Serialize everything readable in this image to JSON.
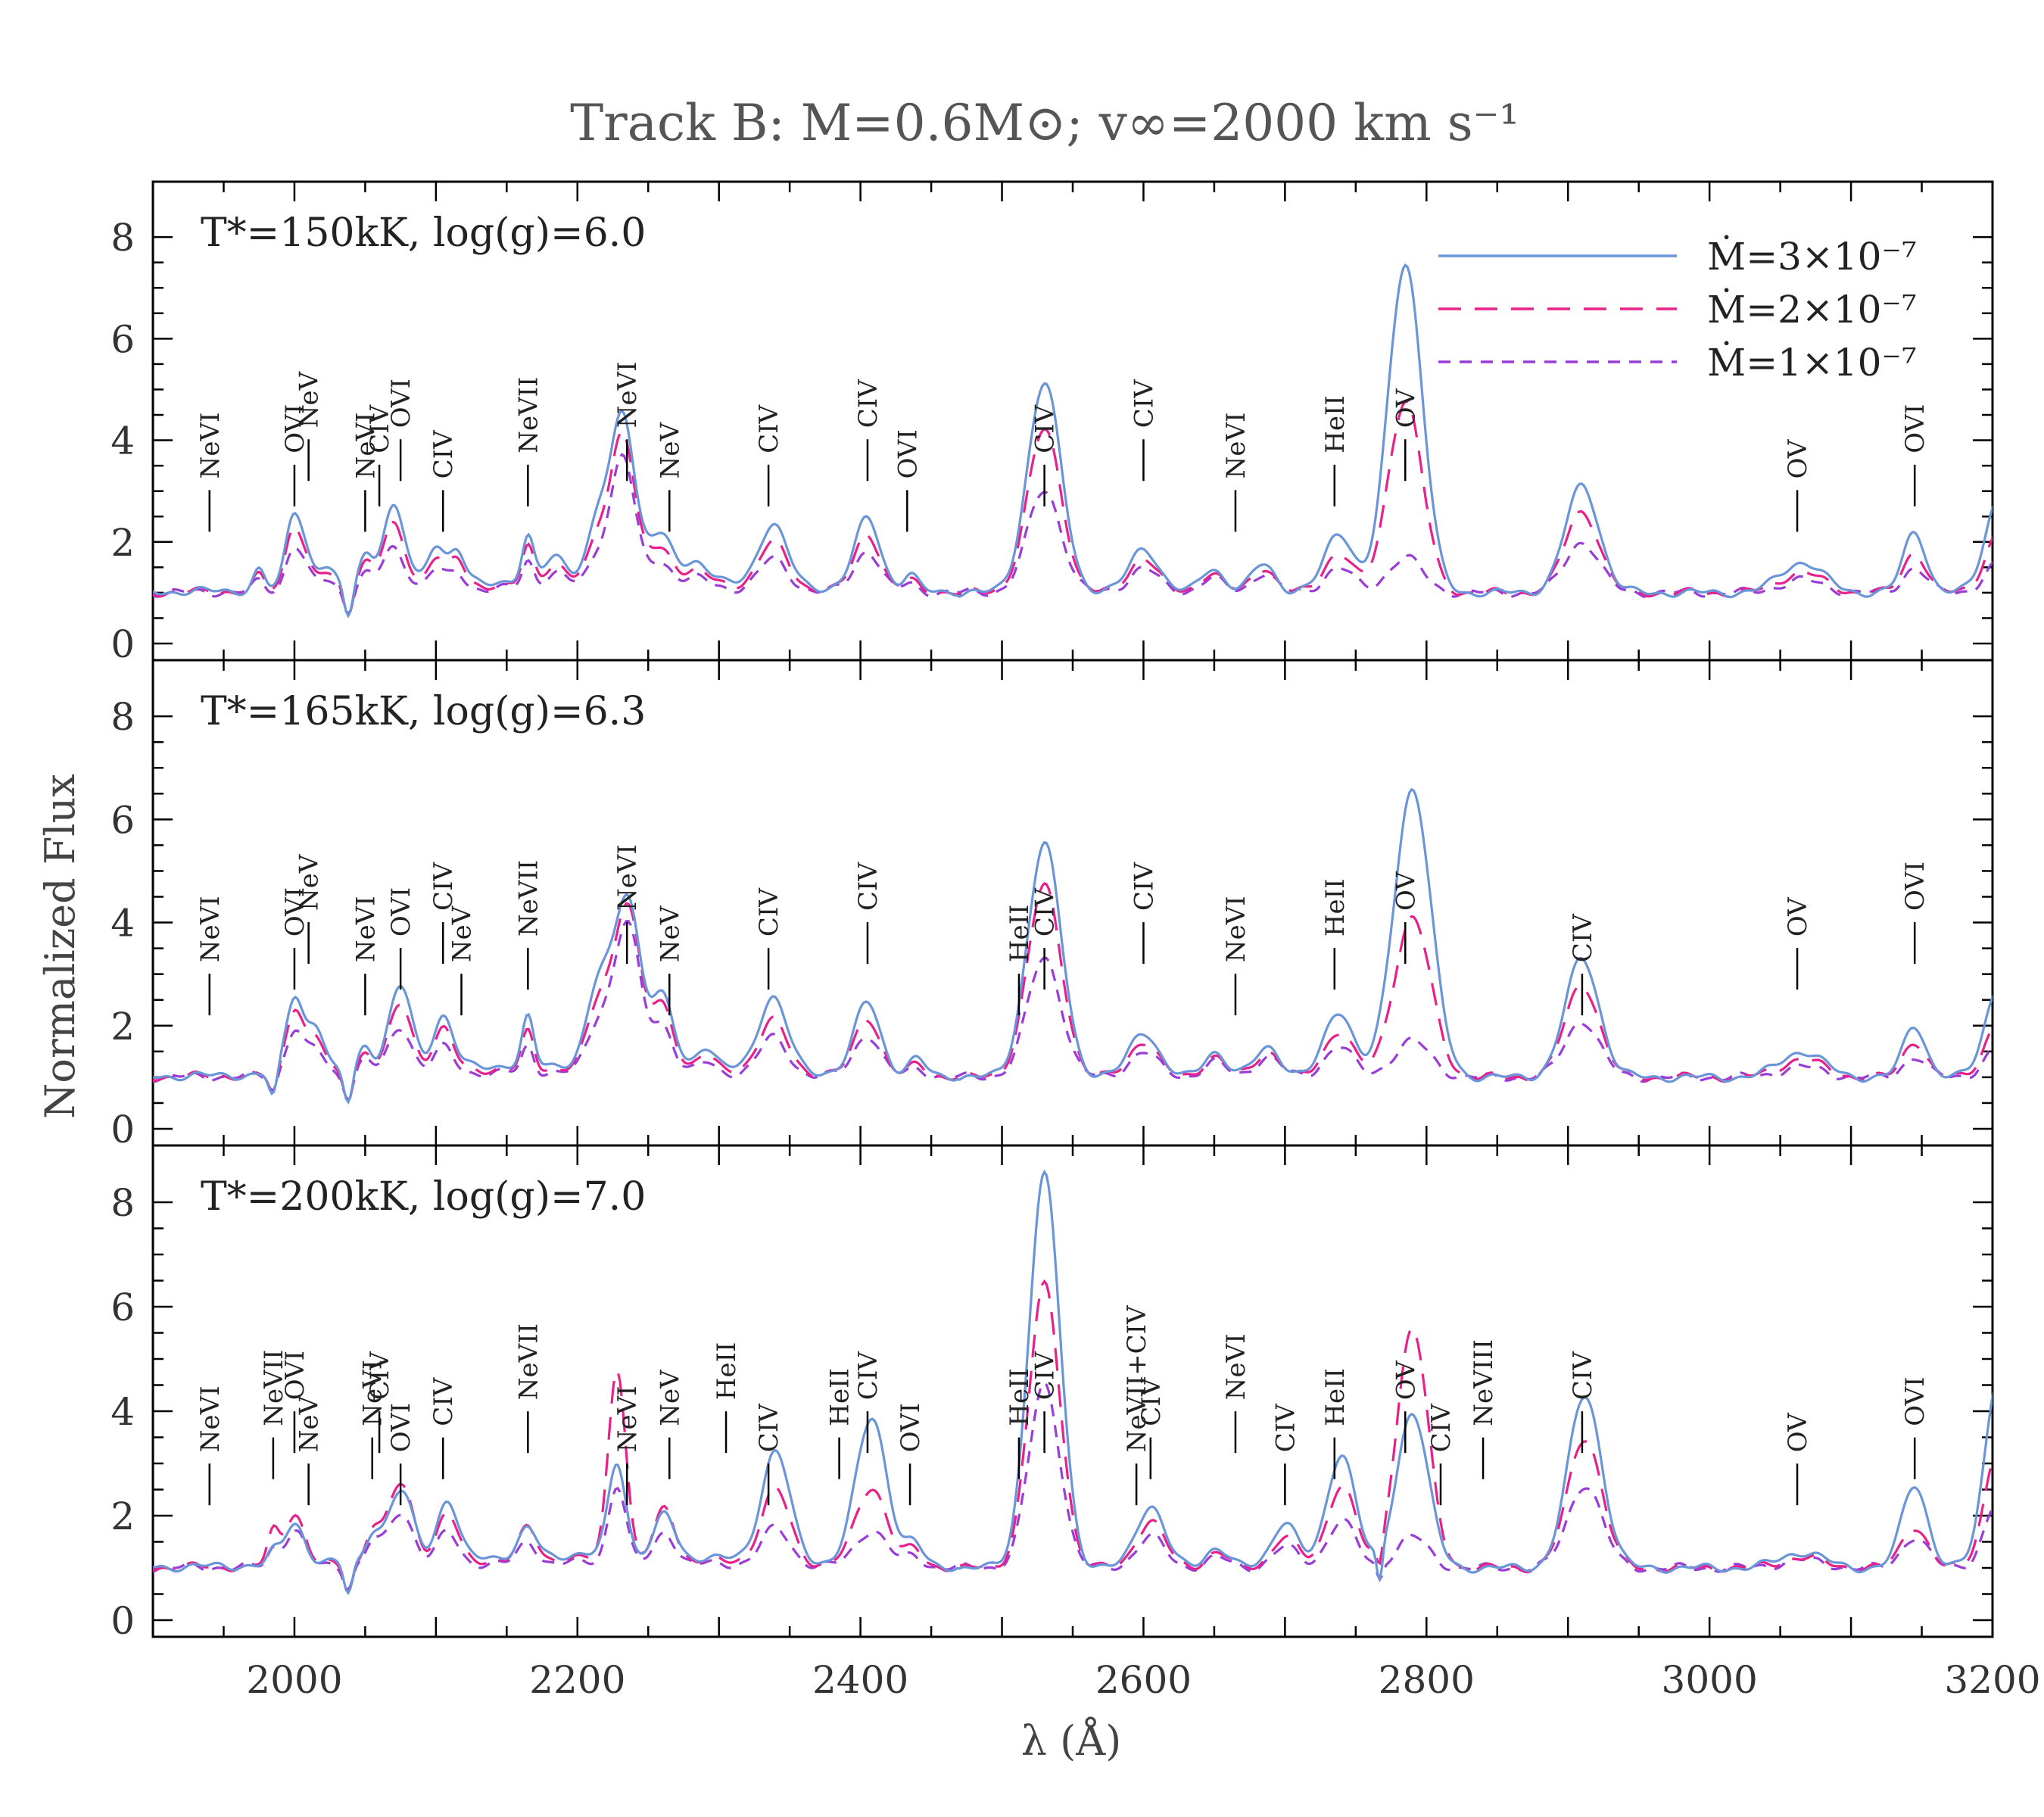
{
  "chart_data": {
    "type": "line",
    "title": "Track B: M=0.6M⊙; v∞=2000 km s⁻¹",
    "xlabel": "λ (Å)",
    "ylabel": "Normalized Flux",
    "xlim": [
      1900,
      3200
    ],
    "ylim": [
      0,
      9
    ],
    "x_ticks": [
      2000,
      2200,
      2400,
      2600,
      2800,
      3000,
      3200
    ],
    "y_ticks": [
      0,
      2,
      4,
      6,
      8
    ],
    "legend": {
      "placement": "top-right",
      "entries": [
        {
          "label": "Ṁ=3×10⁻⁷",
          "color": "#6a95d8",
          "style": "solid"
        },
        {
          "label": "Ṁ=2×10⁻⁷",
          "color": "#e8208a",
          "style": "long-dash"
        },
        {
          "label": "Ṁ=1×10⁻⁷",
          "color": "#9a3cd8",
          "style": "short-dash"
        }
      ]
    },
    "panels": [
      {
        "label": "T*=150kK, log(g)=6.0",
        "peaks": [
          {
            "x": 1975,
            "w": 4,
            "h": [
              0.4,
              0.3,
              0.2
            ]
          },
          {
            "x": 1998,
            "w": 5,
            "h": [
              1.0,
              0.9,
              0.6
            ]
          },
          {
            "x": 2005,
            "w": 6,
            "h": [
              0.9,
              0.7,
              0.5
            ]
          },
          {
            "x": 2022,
            "w": 6,
            "h": [
              0.4,
              0.3,
              0.2
            ]
          },
          {
            "x": 2038,
            "w": 3,
            "h": [
              -0.6,
              -0.5,
              -0.4
            ]
          },
          {
            "x": 2050,
            "w": 5,
            "h": [
              0.6,
              0.5,
              0.3
            ]
          },
          {
            "x": 2070,
            "w": 8,
            "h": [
              1.5,
              1.2,
              0.8
            ]
          },
          {
            "x": 2100,
            "w": 6,
            "h": [
              0.8,
              0.6,
              0.4
            ]
          },
          {
            "x": 2115,
            "w": 5,
            "h": [
              0.6,
              0.5,
              0.3
            ]
          },
          {
            "x": 2165,
            "w": 4,
            "h": [
              0.8,
              0.7,
              0.5
            ]
          },
          {
            "x": 2185,
            "w": 8,
            "h": [
              0.5,
              0.4,
              0.3
            ]
          },
          {
            "x": 2215,
            "w": 7,
            "h": [
              1.2,
              0.9,
              0.6
            ]
          },
          {
            "x": 2232,
            "w": 8,
            "h": [
              3.3,
              3.0,
              2.6
            ]
          },
          {
            "x": 2258,
            "w": 10,
            "h": [
              0.9,
              0.7,
              0.5
            ]
          },
          {
            "x": 2285,
            "w": 8,
            "h": [
              0.4,
              0.3,
              0.2
            ]
          },
          {
            "x": 2338,
            "w": 10,
            "h": [
              1.2,
              0.9,
              0.6
            ]
          },
          {
            "x": 2405,
            "w": 9,
            "h": [
              1.4,
              1.1,
              0.8
            ]
          },
          {
            "x": 2435,
            "w": 5,
            "h": [
              0.3,
              0.2,
              0.15
            ]
          },
          {
            "x": 2530,
            "w": 12,
            "h": [
              4.1,
              3.2,
              2.0
            ]
          },
          {
            "x": 2600,
            "w": 10,
            "h": [
              0.9,
              0.7,
              0.5
            ]
          },
          {
            "x": 2648,
            "w": 8,
            "h": [
              0.5,
              0.4,
              0.3
            ]
          },
          {
            "x": 2685,
            "w": 8,
            "h": [
              0.6,
              0.5,
              0.4
            ]
          },
          {
            "x": 2738,
            "w": 10,
            "h": [
              1.2,
              0.8,
              0.5
            ]
          },
          {
            "x": 2785,
            "w": 12,
            "h": [
              6.5,
              3.8,
              0.7
            ]
          },
          {
            "x": 2910,
            "w": 12,
            "h": [
              2.1,
              1.6,
              1.0
            ]
          },
          {
            "x": 3065,
            "w": 15,
            "h": [
              0.6,
              0.4,
              0.25
            ]
          },
          {
            "x": 3145,
            "w": 8,
            "h": [
              1.2,
              0.8,
              0.5
            ]
          },
          {
            "x": 3205,
            "w": 10,
            "h": [
              1.9,
              1.2,
              0.6
            ]
          }
        ],
        "line_ids": [
          {
            "x": 1940,
            "label": "NeVI"
          },
          {
            "x": 2000,
            "label": "OVI"
          },
          {
            "x": 2010,
            "label": "NeV"
          },
          {
            "x": 2050,
            "label": "NeVI"
          },
          {
            "x": 2060,
            "label": "CIV"
          },
          {
            "x": 2075,
            "label": "OVI"
          },
          {
            "x": 2105,
            "label": "CIV"
          },
          {
            "x": 2165,
            "label": "NeVII"
          },
          {
            "x": 2235,
            "label": "NeVI"
          },
          {
            "x": 2265,
            "label": "NeV"
          },
          {
            "x": 2335,
            "label": "CIV"
          },
          {
            "x": 2405,
            "label": "CIV"
          },
          {
            "x": 2433,
            "label": "OVI"
          },
          {
            "x": 2530,
            "label": "CIV"
          },
          {
            "x": 2600,
            "label": "CIV"
          },
          {
            "x": 2665,
            "label": "NeVI"
          },
          {
            "x": 2735,
            "label": "HeII"
          },
          {
            "x": 2785,
            "label": "OV"
          },
          {
            "x": 3062,
            "label": "OV"
          },
          {
            "x": 3145,
            "label": "OVI"
          }
        ]
      },
      {
        "label": "T*=165kK, log(g)=6.3",
        "peaks": [
          {
            "x": 1985,
            "w": 3,
            "h": [
              -0.5,
              -0.4,
              -0.3
            ]
          },
          {
            "x": 2000,
            "w": 6,
            "h": [
              1.5,
              1.3,
              0.9
            ]
          },
          {
            "x": 2015,
            "w": 6,
            "h": [
              0.9,
              0.7,
              0.5
            ]
          },
          {
            "x": 2038,
            "w": 3,
            "h": [
              -0.6,
              -0.5,
              -0.4
            ]
          },
          {
            "x": 2050,
            "w": 5,
            "h": [
              0.5,
              0.4,
              0.3
            ]
          },
          {
            "x": 2075,
            "w": 8,
            "h": [
              1.6,
              1.3,
              0.9
            ]
          },
          {
            "x": 2105,
            "w": 7,
            "h": [
              1.0,
              0.8,
              0.5
            ]
          },
          {
            "x": 2165,
            "w": 4,
            "h": [
              0.9,
              0.7,
              0.5
            ]
          },
          {
            "x": 2215,
            "w": 8,
            "h": [
              1.5,
              1.2,
              0.9
            ]
          },
          {
            "x": 2235,
            "w": 9,
            "h": [
              3.3,
              3.2,
              2.9
            ]
          },
          {
            "x": 2260,
            "w": 8,
            "h": [
              1.3,
              1.2,
              0.9
            ]
          },
          {
            "x": 2290,
            "w": 6,
            "h": [
              0.4,
              0.3,
              0.2
            ]
          },
          {
            "x": 2338,
            "w": 10,
            "h": [
              1.4,
              1.0,
              0.7
            ]
          },
          {
            "x": 2405,
            "w": 9,
            "h": [
              1.4,
              1.1,
              0.8
            ]
          },
          {
            "x": 2440,
            "w": 6,
            "h": [
              0.3,
              0.2,
              0.15
            ]
          },
          {
            "x": 2530,
            "w": 12,
            "h": [
              4.5,
              3.7,
              2.3
            ]
          },
          {
            "x": 2600,
            "w": 10,
            "h": [
              0.9,
              0.7,
              0.5
            ]
          },
          {
            "x": 2650,
            "w": 8,
            "h": [
              0.5,
              0.4,
              0.3
            ]
          },
          {
            "x": 2688,
            "w": 9,
            "h": [
              0.6,
              0.5,
              0.4
            ]
          },
          {
            "x": 2738,
            "w": 10,
            "h": [
              1.3,
              0.9,
              0.6
            ]
          },
          {
            "x": 2790,
            "w": 13,
            "h": [
              5.6,
              3.1,
              0.7
            ]
          },
          {
            "x": 2910,
            "w": 12,
            "h": [
              2.3,
              1.8,
              1.1
            ]
          },
          {
            "x": 3065,
            "w": 15,
            "h": [
              0.5,
              0.35,
              0.2
            ]
          },
          {
            "x": 3145,
            "w": 8,
            "h": [
              1.0,
              0.7,
              0.4
            ]
          },
          {
            "x": 3205,
            "w": 10,
            "h": [
              1.8,
              1.1,
              0.6
            ]
          }
        ],
        "line_ids": [
          {
            "x": 1940,
            "label": "NeVI"
          },
          {
            "x": 2000,
            "label": "OVI"
          },
          {
            "x": 2010,
            "label": "NeV"
          },
          {
            "x": 2050,
            "label": "NeVI"
          },
          {
            "x": 2075,
            "label": "OVI"
          },
          {
            "x": 2105,
            "label": "CIV"
          },
          {
            "x": 2118,
            "label": "NeV"
          },
          {
            "x": 2165,
            "label": "NeVII"
          },
          {
            "x": 2235,
            "label": "NeVI"
          },
          {
            "x": 2265,
            "label": "NeV"
          },
          {
            "x": 2335,
            "label": "CIV"
          },
          {
            "x": 2405,
            "label": "CIV"
          },
          {
            "x": 2512,
            "label": "HeII"
          },
          {
            "x": 2530,
            "label": "CIV"
          },
          {
            "x": 2600,
            "label": "CIV"
          },
          {
            "x": 2665,
            "label": "NeVI"
          },
          {
            "x": 2735,
            "label": "HeII"
          },
          {
            "x": 2785,
            "label": "OV"
          },
          {
            "x": 2910,
            "label": "CIV"
          },
          {
            "x": 3062,
            "label": "OV"
          },
          {
            "x": 3145,
            "label": "OVI"
          }
        ]
      },
      {
        "label": "T*=200kK, log(g)=7.0",
        "peaks": [
          {
            "x": 1985,
            "w": 4,
            "h": [
              0.2,
              0.6,
              0.3
            ]
          },
          {
            "x": 2000,
            "w": 7,
            "h": [
              0.8,
              1.0,
              0.7
            ]
          },
          {
            "x": 2038,
            "w": 3,
            "h": [
              -0.6,
              -0.5,
              -0.4
            ]
          },
          {
            "x": 2055,
            "w": 5,
            "h": [
              0.5,
              0.6,
              0.4
            ]
          },
          {
            "x": 2075,
            "w": 9,
            "h": [
              1.3,
              1.5,
              1.0
            ]
          },
          {
            "x": 2108,
            "w": 7,
            "h": [
              1.1,
              0.9,
              0.6
            ]
          },
          {
            "x": 2165,
            "w": 6,
            "h": [
              0.5,
              0.6,
              0.4
            ]
          },
          {
            "x": 2228,
            "w": 6,
            "h": [
              1.8,
              3.7,
              1.5
            ]
          },
          {
            "x": 2262,
            "w": 7,
            "h": [
              0.8,
              1.0,
              0.6
            ]
          },
          {
            "x": 2340,
            "w": 10,
            "h": [
              2.1,
              1.4,
              0.7
            ]
          },
          {
            "x": 2408,
            "w": 11,
            "h": [
              2.8,
              1.5,
              0.7
            ]
          },
          {
            "x": 2438,
            "w": 6,
            "h": [
              0.4,
              0.3,
              0.2
            ]
          },
          {
            "x": 2530,
            "w": 11,
            "h": [
              7.5,
              5.4,
              3.5
            ]
          },
          {
            "x": 2605,
            "w": 10,
            "h": [
              1.2,
              0.9,
              0.6
            ]
          },
          {
            "x": 2652,
            "w": 8,
            "h": [
              0.4,
              0.3,
              0.2
            ]
          },
          {
            "x": 2700,
            "w": 9,
            "h": [
              0.9,
              0.6,
              0.4
            ]
          },
          {
            "x": 2740,
            "w": 10,
            "h": [
              2.2,
              1.6,
              0.9
            ]
          },
          {
            "x": 2767,
            "w": 2,
            "h": [
              -0.7,
              -0.5,
              -0.3
            ]
          },
          {
            "x": 2790,
            "w": 11,
            "h": [
              3.0,
              4.6,
              0.6
            ]
          },
          {
            "x": 2912,
            "w": 12,
            "h": [
              3.3,
              2.5,
              1.6
            ]
          },
          {
            "x": 3065,
            "w": 15,
            "h": [
              0.3,
              0.2,
              0.15
            ]
          },
          {
            "x": 3145,
            "w": 9,
            "h": [
              1.6,
              0.8,
              0.6
            ]
          },
          {
            "x": 3205,
            "w": 10,
            "h": [
              3.8,
              2.4,
              1.3
            ]
          }
        ],
        "line_ids": [
          {
            "x": 1940,
            "label": "NeVI"
          },
          {
            "x": 1985,
            "label": "NeVII"
          },
          {
            "x": 2000,
            "label": "OVI"
          },
          {
            "x": 2010,
            "label": "NeV"
          },
          {
            "x": 2055,
            "label": "NeVI"
          },
          {
            "x": 2060,
            "label": "CIV"
          },
          {
            "x": 2075,
            "label": "OVI"
          },
          {
            "x": 2105,
            "label": "CIV"
          },
          {
            "x": 2165,
            "label": "NeVII"
          },
          {
            "x": 2235,
            "label": "NeVI"
          },
          {
            "x": 2265,
            "label": "NeV"
          },
          {
            "x": 2305,
            "label": "HeII"
          },
          {
            "x": 2335,
            "label": "CIV"
          },
          {
            "x": 2385,
            "label": "HeII"
          },
          {
            "x": 2405,
            "label": "CIV"
          },
          {
            "x": 2435,
            "label": "OVI"
          },
          {
            "x": 2512,
            "label": "HeII"
          },
          {
            "x": 2530,
            "label": "CIV"
          },
          {
            "x": 2595,
            "label": "NeVII+CIV"
          },
          {
            "x": 2605,
            "label": "CIV"
          },
          {
            "x": 2665,
            "label": "NeVI"
          },
          {
            "x": 2700,
            "label": "CIV"
          },
          {
            "x": 2735,
            "label": "HeII"
          },
          {
            "x": 2785,
            "label": "OV"
          },
          {
            "x": 2810,
            "label": "CIV"
          },
          {
            "x": 2840,
            "label": "NeVIII"
          },
          {
            "x": 2910,
            "label": "CIV"
          },
          {
            "x": 3062,
            "label": "OV"
          },
          {
            "x": 3145,
            "label": "OVI"
          }
        ]
      }
    ]
  }
}
